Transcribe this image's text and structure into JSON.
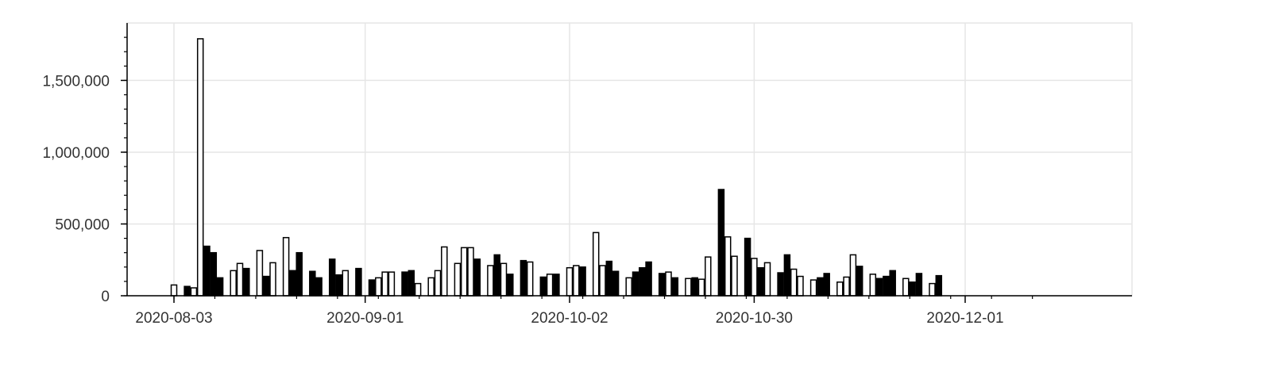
{
  "chart_data": {
    "type": "bar",
    "x_axis": {
      "type": "date",
      "tick_labels": [
        "2020-08-03",
        "2020-09-01",
        "2020-10-02",
        "2020-10-30",
        "2020-12-01"
      ]
    },
    "y_axis": {
      "ylim": [
        0,
        1900000
      ],
      "tick_values": [
        0,
        500000,
        1000000,
        1500000
      ],
      "tick_labels": [
        "0",
        "500,000",
        "1,000,000",
        "1,500,000"
      ]
    },
    "grid": true,
    "legend": "none",
    "colors": {
      "dark_bar": "#000000",
      "light_bar": "#ffffff",
      "bar_outline": "#000000",
      "grid": "#e6e6e6"
    },
    "data_points": [
      {
        "date": "2020-08-03",
        "value": 75000,
        "style": "light"
      },
      {
        "date": "2020-08-05",
        "value": 65000,
        "style": "dark"
      },
      {
        "date": "2020-08-06",
        "value": 55000,
        "style": "light"
      },
      {
        "date": "2020-08-07",
        "value": 1790000,
        "style": "light"
      },
      {
        "date": "2020-08-08",
        "value": 345000,
        "style": "dark"
      },
      {
        "date": "2020-08-09",
        "value": 300000,
        "style": "dark"
      },
      {
        "date": "2020-08-10",
        "value": 125000,
        "style": "dark"
      },
      {
        "date": "2020-08-12",
        "value": 175000,
        "style": "light"
      },
      {
        "date": "2020-08-13",
        "value": 225000,
        "style": "light"
      },
      {
        "date": "2020-08-14",
        "value": 190000,
        "style": "dark"
      },
      {
        "date": "2020-08-16",
        "value": 315000,
        "style": "light"
      },
      {
        "date": "2020-08-17",
        "value": 135000,
        "style": "dark"
      },
      {
        "date": "2020-08-18",
        "value": 230000,
        "style": "light"
      },
      {
        "date": "2020-08-20",
        "value": 405000,
        "style": "light"
      },
      {
        "date": "2020-08-21",
        "value": 175000,
        "style": "dark"
      },
      {
        "date": "2020-08-22",
        "value": 300000,
        "style": "dark"
      },
      {
        "date": "2020-08-24",
        "value": 170000,
        "style": "dark"
      },
      {
        "date": "2020-08-25",
        "value": 125000,
        "style": "dark"
      },
      {
        "date": "2020-08-27",
        "value": 255000,
        "style": "dark"
      },
      {
        "date": "2020-08-28",
        "value": 145000,
        "style": "dark"
      },
      {
        "date": "2020-08-29",
        "value": 175000,
        "style": "light"
      },
      {
        "date": "2020-08-31",
        "value": 190000,
        "style": "dark"
      },
      {
        "date": "2020-09-02",
        "value": 110000,
        "style": "dark"
      },
      {
        "date": "2020-09-03",
        "value": 125000,
        "style": "light"
      },
      {
        "date": "2020-09-04",
        "value": 165000,
        "style": "light"
      },
      {
        "date": "2020-09-05",
        "value": 165000,
        "style": "light"
      },
      {
        "date": "2020-09-07",
        "value": 165000,
        "style": "dark"
      },
      {
        "date": "2020-09-08",
        "value": 175000,
        "style": "dark"
      },
      {
        "date": "2020-09-09",
        "value": 85000,
        "style": "light"
      },
      {
        "date": "2020-09-11",
        "value": 125000,
        "style": "light"
      },
      {
        "date": "2020-09-12",
        "value": 175000,
        "style": "light"
      },
      {
        "date": "2020-09-13",
        "value": 340000,
        "style": "light"
      },
      {
        "date": "2020-09-15",
        "value": 225000,
        "style": "light"
      },
      {
        "date": "2020-09-16",
        "value": 335000,
        "style": "light"
      },
      {
        "date": "2020-09-17",
        "value": 335000,
        "style": "light"
      },
      {
        "date": "2020-09-18",
        "value": 255000,
        "style": "dark"
      },
      {
        "date": "2020-09-20",
        "value": 210000,
        "style": "light"
      },
      {
        "date": "2020-09-21",
        "value": 285000,
        "style": "dark"
      },
      {
        "date": "2020-09-22",
        "value": 225000,
        "style": "light"
      },
      {
        "date": "2020-09-23",
        "value": 150000,
        "style": "dark"
      },
      {
        "date": "2020-09-25",
        "value": 245000,
        "style": "dark"
      },
      {
        "date": "2020-09-26",
        "value": 235000,
        "style": "light"
      },
      {
        "date": "2020-09-28",
        "value": 130000,
        "style": "dark"
      },
      {
        "date": "2020-09-29",
        "value": 150000,
        "style": "light"
      },
      {
        "date": "2020-09-30",
        "value": 150000,
        "style": "dark"
      },
      {
        "date": "2020-10-02",
        "value": 195000,
        "style": "light"
      },
      {
        "date": "2020-10-03",
        "value": 210000,
        "style": "light"
      },
      {
        "date": "2020-10-04",
        "value": 200000,
        "style": "dark"
      },
      {
        "date": "2020-10-06",
        "value": 440000,
        "style": "light"
      },
      {
        "date": "2020-10-07",
        "value": 210000,
        "style": "light"
      },
      {
        "date": "2020-10-08",
        "value": 240000,
        "style": "dark"
      },
      {
        "date": "2020-10-09",
        "value": 170000,
        "style": "dark"
      },
      {
        "date": "2020-10-11",
        "value": 125000,
        "style": "light"
      },
      {
        "date": "2020-10-12",
        "value": 165000,
        "style": "dark"
      },
      {
        "date": "2020-10-13",
        "value": 195000,
        "style": "dark"
      },
      {
        "date": "2020-10-14",
        "value": 235000,
        "style": "dark"
      },
      {
        "date": "2020-10-16",
        "value": 155000,
        "style": "dark"
      },
      {
        "date": "2020-10-17",
        "value": 165000,
        "style": "light"
      },
      {
        "date": "2020-10-18",
        "value": 125000,
        "style": "dark"
      },
      {
        "date": "2020-10-20",
        "value": 120000,
        "style": "light"
      },
      {
        "date": "2020-10-21",
        "value": 125000,
        "style": "dark"
      },
      {
        "date": "2020-10-22",
        "value": 115000,
        "style": "light"
      },
      {
        "date": "2020-10-23",
        "value": 270000,
        "style": "light"
      },
      {
        "date": "2020-10-25",
        "value": 740000,
        "style": "dark"
      },
      {
        "date": "2020-10-26",
        "value": 410000,
        "style": "light"
      },
      {
        "date": "2020-10-27",
        "value": 275000,
        "style": "light"
      },
      {
        "date": "2020-10-29",
        "value": 400000,
        "style": "dark"
      },
      {
        "date": "2020-10-30",
        "value": 260000,
        "style": "light"
      },
      {
        "date": "2020-10-31",
        "value": 195000,
        "style": "dark"
      },
      {
        "date": "2020-11-01",
        "value": 230000,
        "style": "light"
      },
      {
        "date": "2020-11-03",
        "value": 160000,
        "style": "dark"
      },
      {
        "date": "2020-11-04",
        "value": 285000,
        "style": "dark"
      },
      {
        "date": "2020-11-05",
        "value": 185000,
        "style": "light"
      },
      {
        "date": "2020-11-06",
        "value": 135000,
        "style": "light"
      },
      {
        "date": "2020-11-08",
        "value": 110000,
        "style": "light"
      },
      {
        "date": "2020-11-09",
        "value": 125000,
        "style": "dark"
      },
      {
        "date": "2020-11-10",
        "value": 155000,
        "style": "dark"
      },
      {
        "date": "2020-11-12",
        "value": 95000,
        "style": "light"
      },
      {
        "date": "2020-11-13",
        "value": 130000,
        "style": "light"
      },
      {
        "date": "2020-11-14",
        "value": 285000,
        "style": "light"
      },
      {
        "date": "2020-11-15",
        "value": 205000,
        "style": "dark"
      },
      {
        "date": "2020-11-17",
        "value": 150000,
        "style": "light"
      },
      {
        "date": "2020-11-18",
        "value": 120000,
        "style": "dark"
      },
      {
        "date": "2020-11-19",
        "value": 135000,
        "style": "dark"
      },
      {
        "date": "2020-11-20",
        "value": 175000,
        "style": "dark"
      },
      {
        "date": "2020-11-22",
        "value": 120000,
        "style": "light"
      },
      {
        "date": "2020-11-23",
        "value": 95000,
        "style": "dark"
      },
      {
        "date": "2020-11-24",
        "value": 155000,
        "style": "dark"
      },
      {
        "date": "2020-11-26",
        "value": 85000,
        "style": "light"
      },
      {
        "date": "2020-11-27",
        "value": 140000,
        "style": "dark"
      }
    ]
  }
}
